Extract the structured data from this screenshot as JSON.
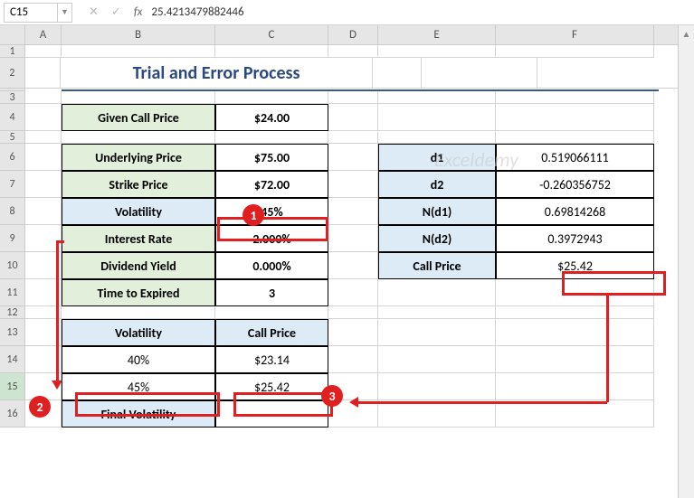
{
  "namebox": {
    "ref": "C15",
    "fx_value": "25.4213479882446"
  },
  "col_headers": [
    "A",
    "B",
    "C",
    "D",
    "E",
    "F"
  ],
  "row_headers": [
    "1",
    "2",
    "3",
    "4",
    "5",
    "6",
    "7",
    "8",
    "9",
    "10",
    "11",
    "12",
    "13",
    "14",
    "15",
    "16"
  ],
  "title": "Trial and Error Process",
  "given": {
    "label": "Given Call Price",
    "value": "$24.00"
  },
  "inputs": [
    {
      "label": "Underlying Price",
      "value": "$75.00",
      "lblcls": "lbl-green"
    },
    {
      "label": "Strike Price",
      "value": "$72.00",
      "lblcls": "lbl-green"
    },
    {
      "label": "Volatility",
      "value": "45%",
      "lblcls": "lbl-blue"
    },
    {
      "label": "Interest Rate",
      "value": "2.000%",
      "lblcls": "lbl-green"
    },
    {
      "label": "Dividend Yield",
      "value": "0.000%",
      "lblcls": "lbl-green"
    },
    {
      "label": "Time to Expired",
      "value": "3",
      "lblcls": "lbl-green"
    }
  ],
  "outputs": [
    {
      "label": "d1",
      "value": "0.519066111"
    },
    {
      "label": "d2",
      "value": "-0.260356752"
    },
    {
      "label": "N(d1)",
      "value": "0.69814268"
    },
    {
      "label": "N(d2)",
      "value": "0.3972943"
    },
    {
      "label": "Call Price",
      "value": "$25.42"
    }
  ],
  "trial": {
    "hdr_vol": "Volatility",
    "hdr_cp": "Call Price",
    "rows": [
      {
        "vol": "40%",
        "cp": "$23.14"
      },
      {
        "vol": "45%",
        "cp": "$25.42"
      }
    ],
    "final": "Final Volatility"
  },
  "watermark": "Exceldemy",
  "row_heights": {
    "default": 30,
    "r1": 14,
    "r2": 34,
    "r3": 14,
    "r5": 14,
    "r12": 14
  },
  "active_row": "15"
}
